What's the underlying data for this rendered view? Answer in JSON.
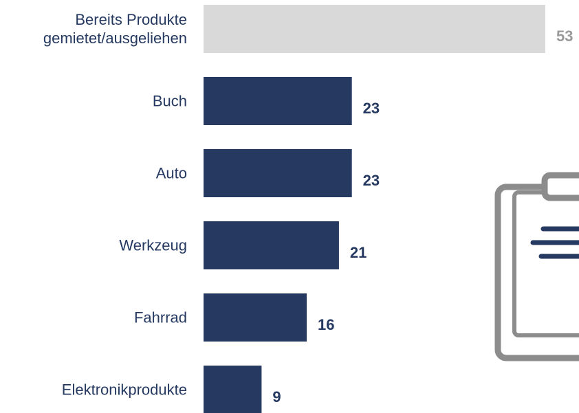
{
  "chart_data": {
    "type": "bar",
    "orientation": "horizontal",
    "categories": [
      "Bereits Produkte\ngemietet/ausgeliehen",
      "Buch",
      "Auto",
      "Werkzeug",
      "Fahrrad",
      "Elektronikprodukte"
    ],
    "values": [
      53,
      23,
      23,
      21,
      16,
      9
    ],
    "colors": [
      "#d9d9d9",
      "#253961",
      "#253961",
      "#253961",
      "#253961",
      "#253961"
    ],
    "label_colors": [
      "#9a9a9a",
      "#253961",
      "#253961",
      "#253961",
      "#253961",
      "#253961"
    ]
  }
}
